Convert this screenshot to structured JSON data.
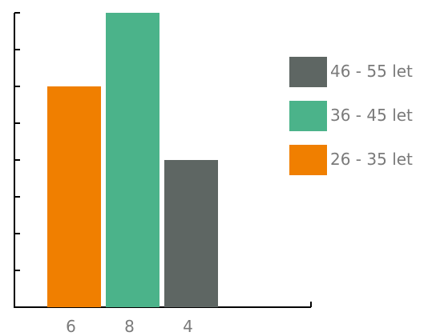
{
  "chart_data": {
    "type": "bar",
    "categories": [
      "6",
      "8",
      "4"
    ],
    "series": [
      {
        "name": "26 - 35 let",
        "values": [
          6,
          0,
          0
        ],
        "color": "#f07f00"
      },
      {
        "name": "36 - 45 let",
        "values": [
          0,
          8,
          0
        ],
        "color": "#4bb38a"
      },
      {
        "name": "46 - 55 let",
        "values": [
          0,
          0,
          4
        ],
        "color": "#5e6663"
      }
    ],
    "bars": [
      {
        "category": "6",
        "value": 6,
        "series": "26 - 35 let",
        "color": "#f07f00"
      },
      {
        "category": "8",
        "value": 8,
        "series": "36 - 45 let",
        "color": "#4bb38a"
      },
      {
        "category": "4",
        "value": 4,
        "series": "46 - 55 let",
        "color": "#5e6663"
      }
    ],
    "ylim": [
      0,
      8
    ],
    "y_tick_step": 1,
    "y_tick_labels_shown": false,
    "grid": false,
    "title": "",
    "xlabel": "",
    "ylabel": "",
    "legend": {
      "placement": "right",
      "entries": [
        {
          "label": "46 - 55 let",
          "color": "#5e6663"
        },
        {
          "label": "36 - 45 let",
          "color": "#4bb38a"
        },
        {
          "label": "26 - 35 let",
          "color": "#f07f00"
        }
      ]
    }
  }
}
